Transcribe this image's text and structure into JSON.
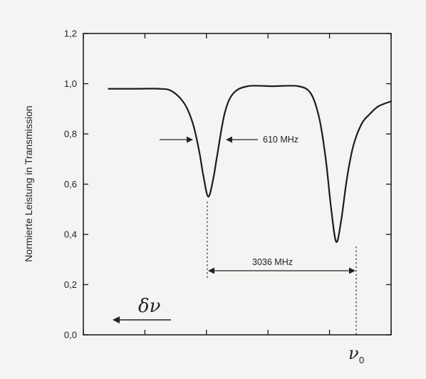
{
  "chart_data": {
    "type": "line",
    "title": "",
    "xlabel": "",
    "ylabel": "Normierte Leistung in Transmission",
    "ylim": [
      0.0,
      1.2
    ],
    "yticks": [
      "0,0",
      "0,2",
      "0,4",
      "0,6",
      "0,8",
      "1,0",
      "1,2"
    ],
    "ytick_values": [
      0.0,
      0.2,
      0.4,
      0.6,
      0.8,
      1.0,
      1.2
    ],
    "xlim": [
      -6000,
      1300
    ],
    "x_unit": "MHz",
    "grid": false,
    "series": [
      {
        "x": [
          -5400,
          -4800,
          -4200,
          -3900,
          -3600,
          -3400,
          -3250,
          -3150,
          -3036,
          -2920,
          -2820,
          -2650,
          -2450,
          -2100,
          -1500,
          -900,
          -600,
          -400,
          -250,
          -120,
          0,
          120,
          250,
          400,
          600,
          800,
          1000,
          1300
        ],
        "y": [
          0.98,
          0.98,
          0.98,
          0.97,
          0.92,
          0.84,
          0.73,
          0.63,
          0.55,
          0.62,
          0.72,
          0.88,
          0.96,
          0.99,
          0.99,
          0.99,
          0.96,
          0.86,
          0.7,
          0.5,
          0.37,
          0.46,
          0.62,
          0.75,
          0.84,
          0.88,
          0.91,
          0.93
        ]
      }
    ],
    "annotations": {
      "fwhm_label": "610 MHz",
      "fwhm_mhz": 610,
      "spacing_label": "3036 MHz",
      "spacing_mhz": 3036,
      "delta_nu_label": "δν",
      "nu0_label": "ν",
      "nu0_subscript": "0"
    }
  }
}
